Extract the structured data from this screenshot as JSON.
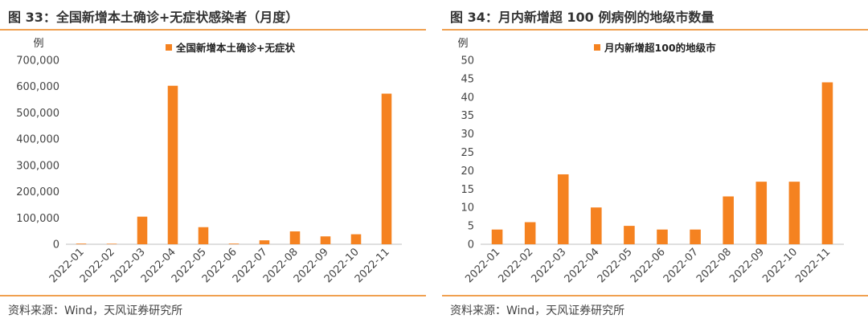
{
  "charts": [
    {
      "title": "图 33：全国新增本土确诊+无症状感染者（月度）",
      "source": "资料来源：Wind，天风证券研究所",
      "colors": {
        "bar": "#f58220",
        "rule": "#f0a050"
      },
      "chart_data": {
        "type": "bar",
        "ylabel": "例",
        "ylim": [
          0,
          700000
        ],
        "yticks": [
          "0",
          "100,000",
          "200,000",
          "300,000",
          "400,000",
          "500,000",
          "600,000",
          "700,000"
        ],
        "legend_position": "top-center",
        "grid": false,
        "categories": [
          "2022-01",
          "2022-02",
          "2022-03",
          "2022-04",
          "2022-05",
          "2022-06",
          "2022-07",
          "2022-08",
          "2022-09",
          "2022-10",
          "2022-11"
        ],
        "series": [
          {
            "name": "全国新增本土确诊+无症状",
            "values": [
              2500,
              2000,
              105000,
              603000,
              65000,
              2500,
              15000,
              49000,
              30000,
              38000,
              573000
            ]
          }
        ]
      }
    },
    {
      "title": "图 34：月内新增超 100 例病例的地级市数量",
      "source": "资料来源：Wind，天风证券研究所",
      "colors": {
        "bar": "#f58220",
        "rule": "#f0a050"
      },
      "chart_data": {
        "type": "bar",
        "ylabel": "例",
        "ylim": [
          0,
          50
        ],
        "yticks": [
          "0",
          "5",
          "10",
          "15",
          "20",
          "25",
          "30",
          "35",
          "40",
          "45",
          "50"
        ],
        "legend_position": "top-center",
        "grid": false,
        "categories": [
          "2022-01",
          "2022-02",
          "2022-03",
          "2022-04",
          "2022-05",
          "2022-06",
          "2022-07",
          "2022-08",
          "2022-09",
          "2022-10",
          "2022-11"
        ],
        "series": [
          {
            "name": "月内新增超100的地级市",
            "values": [
              4,
              6,
              19,
              10,
              5,
              4,
              4,
              13,
              17,
              17,
              44
            ]
          }
        ]
      }
    }
  ]
}
